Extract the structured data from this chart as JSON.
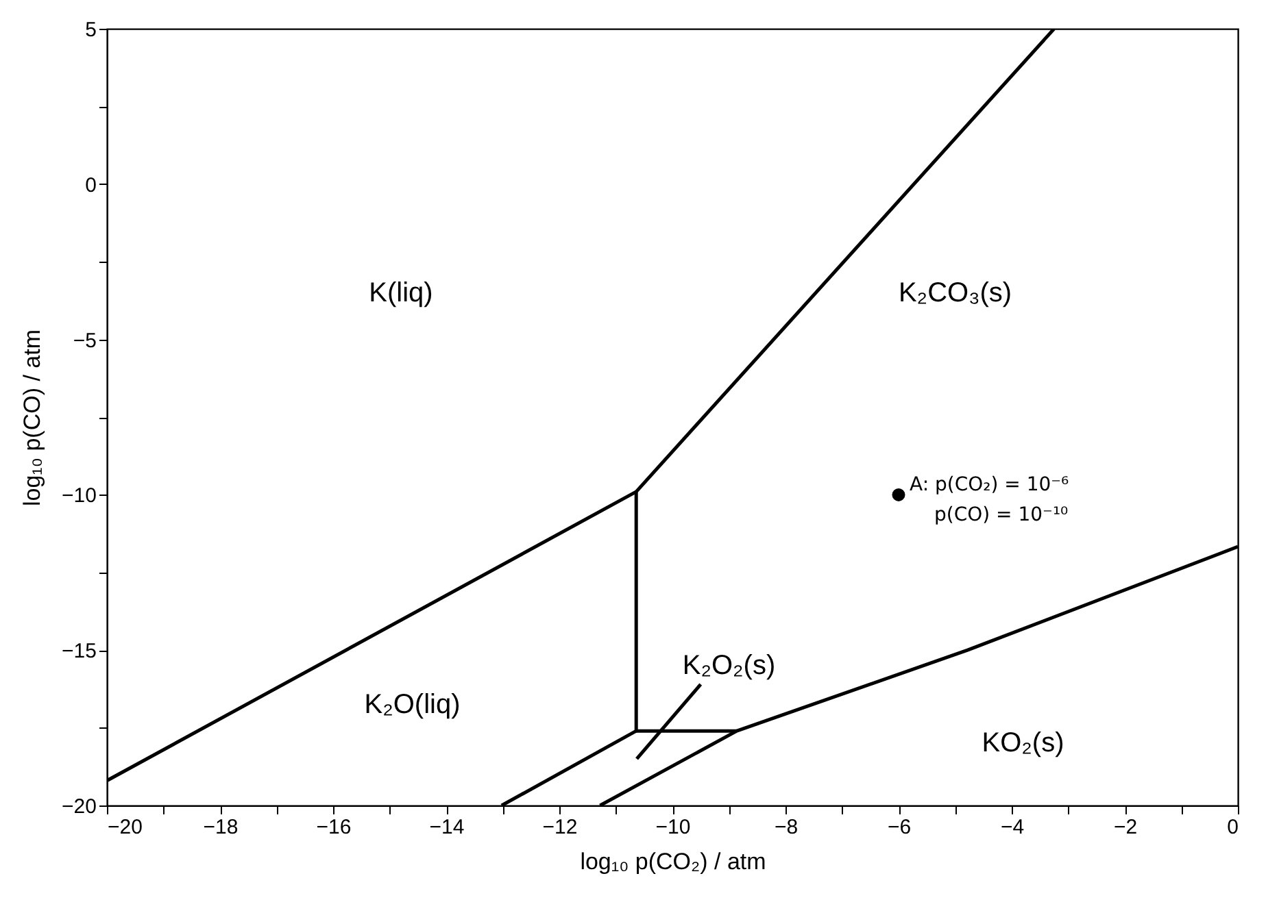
{
  "chart_data": {
    "type": "line",
    "xlabel": "log₁₀ p(CO₂) / atm",
    "ylabel": "log₁₀ p(CO) / atm",
    "xlim": [
      -20,
      0
    ],
    "ylim": [
      -20,
      5
    ],
    "xticks": [
      -20,
      {
        "value": -19,
        "label": null
      },
      -18,
      {
        "value": -17,
        "label": null
      },
      -16,
      {
        "value": -15,
        "label": null
      },
      -14,
      {
        "value": -13,
        "label": null
      },
      -12,
      {
        "value": -11,
        "label": null
      },
      -10,
      {
        "value": -9,
        "label": null
      },
      -8,
      {
        "value": -7,
        "label": null
      },
      -6,
      {
        "value": -5,
        "label": null
      },
      -4,
      {
        "value": -3,
        "label": null
      },
      -2,
      {
        "value": -1,
        "label": null
      },
      0
    ],
    "yticks": [
      -20,
      {
        "value": -17.5,
        "label": null
      },
      -15,
      {
        "value": -12.5,
        "label": null
      },
      -10,
      {
        "value": -7.5,
        "label": null
      },
      -5,
      {
        "value": -2.5,
        "label": null
      },
      0,
      {
        "value": 2.5,
        "label": null
      },
      5
    ],
    "grid": false,
    "legend": false,
    "line_style": "solid",
    "marker": "none",
    "series": [
      {
        "color": "#000000",
        "x": [
          -20,
          -10.64,
          -3.25
        ],
        "values": [
          -19.2,
          -9.9,
          5
        ]
      },
      {
        "color": "#000000",
        "x": [
          -10.64,
          -10.64,
          -8.86
        ],
        "values": [
          -9.9,
          -17.6,
          -17.6
        ]
      },
      {
        "color": "#000000",
        "x": [
          -13.02,
          -10.64
        ],
        "values": [
          -20,
          -17.6
        ]
      },
      {
        "color": "#000000",
        "x": [
          -11.28,
          -8.86,
          -4.78,
          0
        ],
        "values": [
          -20,
          -17.6,
          -15,
          -11.67
        ]
      },
      {
        "color": "#000000",
        "x": [
          -10.63,
          -9.5
        ],
        "values": [
          -18.5,
          -16.1
        ]
      },
      {
        "type": "scatter",
        "color": "#000000",
        "marker": "circle",
        "x": [
          -6
        ],
        "values": [
          -10
        ]
      }
    ],
    "annotations": [
      "K(liq)",
      "K₂CO₃(s)",
      "K₂O(liq)",
      "K₂O₂(s)",
      "KO₂(s)",
      {
        "text": "A: p(CO₂) = 10⁻⁶",
        "x": -6,
        "y": -10
      },
      {
        "text": "p(CO) = 10⁻¹⁰",
        "x": -6,
        "y": -10
      }
    ]
  }
}
